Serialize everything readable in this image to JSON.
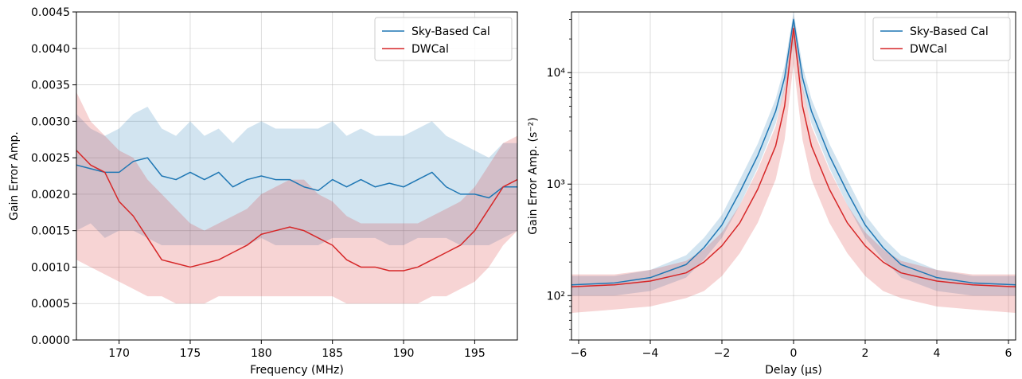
{
  "chart_data": [
    {
      "type": "line",
      "xlabel": "Frequency (MHz)",
      "ylabel": "Gain Error Amp.",
      "xlim": [
        167,
        198
      ],
      "ylim": [
        0,
        0.0045
      ],
      "x_ticks": [
        170,
        175,
        180,
        185,
        190,
        195
      ],
      "y_ticks": [
        0.0,
        0.0005,
        0.001,
        0.0015,
        0.002,
        0.0025,
        0.003,
        0.0035,
        0.004,
        0.0045
      ],
      "x_tick_labels": [
        "170",
        "175",
        "180",
        "185",
        "190",
        "195"
      ],
      "y_tick_labels": [
        "0.0000",
        "0.0005",
        "0.0010",
        "0.0015",
        "0.0020",
        "0.0025",
        "0.0030",
        "0.0035",
        "0.0040",
        "0.0045"
      ],
      "grid": true,
      "legend_position": "top-right",
      "series": [
        {
          "name": "Sky-Based Cal",
          "color": "#1f77b4",
          "x": [
            167,
            168,
            169,
            170,
            171,
            172,
            173,
            174,
            175,
            176,
            177,
            178,
            179,
            180,
            181,
            182,
            183,
            184,
            185,
            186,
            187,
            188,
            189,
            190,
            191,
            192,
            193,
            194,
            195,
            196,
            197,
            198
          ],
          "y": [
            0.0024,
            0.00235,
            0.0023,
            0.0023,
            0.00245,
            0.0025,
            0.00225,
            0.0022,
            0.0023,
            0.0022,
            0.0023,
            0.0021,
            0.0022,
            0.00225,
            0.0022,
            0.0022,
            0.0021,
            0.00205,
            0.0022,
            0.0021,
            0.0022,
            0.0021,
            0.00215,
            0.0021,
            0.0022,
            0.0023,
            0.0021,
            0.002,
            0.002,
            0.00195,
            0.0021,
            0.0021
          ],
          "lower": [
            0.0015,
            0.0016,
            0.0014,
            0.0015,
            0.0015,
            0.0014,
            0.0013,
            0.0013,
            0.0013,
            0.0013,
            0.0013,
            0.0013,
            0.0013,
            0.0014,
            0.0013,
            0.0013,
            0.0013,
            0.0013,
            0.0014,
            0.0014,
            0.0014,
            0.0014,
            0.0013,
            0.0013,
            0.0014,
            0.0014,
            0.0014,
            0.0013,
            0.0013,
            0.0013,
            0.0014,
            0.0015
          ],
          "upper": [
            0.0031,
            0.0029,
            0.0028,
            0.0029,
            0.0031,
            0.0032,
            0.0029,
            0.0028,
            0.003,
            0.0028,
            0.0029,
            0.0027,
            0.0029,
            0.003,
            0.0029,
            0.0029,
            0.0029,
            0.0029,
            0.003,
            0.0028,
            0.0029,
            0.0028,
            0.0028,
            0.0028,
            0.0029,
            0.003,
            0.0028,
            0.0027,
            0.0026,
            0.0025,
            0.0027,
            0.0027
          ]
        },
        {
          "name": "DWCal",
          "color": "#d62728",
          "x": [
            167,
            168,
            169,
            170,
            171,
            172,
            173,
            174,
            175,
            176,
            177,
            178,
            179,
            180,
            181,
            182,
            183,
            184,
            185,
            186,
            187,
            188,
            189,
            190,
            191,
            192,
            193,
            194,
            195,
            196,
            197,
            198
          ],
          "y": [
            0.0026,
            0.0024,
            0.0023,
            0.0019,
            0.0017,
            0.0014,
            0.0011,
            0.00105,
            0.001,
            0.00105,
            0.0011,
            0.0012,
            0.0013,
            0.00145,
            0.0015,
            0.00155,
            0.0015,
            0.0014,
            0.0013,
            0.0011,
            0.001,
            0.001,
            0.00095,
            0.00095,
            0.001,
            0.0011,
            0.0012,
            0.0013,
            0.0015,
            0.0018,
            0.0021,
            0.0022
          ],
          "lower": [
            0.0011,
            0.001,
            0.0009,
            0.0008,
            0.0007,
            0.0006,
            0.0006,
            0.0005,
            0.0005,
            0.0005,
            0.0006,
            0.0006,
            0.0006,
            0.0006,
            0.0006,
            0.0006,
            0.0006,
            0.0006,
            0.0006,
            0.0005,
            0.0005,
            0.0005,
            0.0005,
            0.0005,
            0.0005,
            0.0006,
            0.0006,
            0.0007,
            0.0008,
            0.001,
            0.0013,
            0.0015
          ],
          "upper": [
            0.0034,
            0.003,
            0.0028,
            0.0026,
            0.0025,
            0.0022,
            0.002,
            0.0018,
            0.0016,
            0.0015,
            0.0016,
            0.0017,
            0.0018,
            0.002,
            0.0021,
            0.0022,
            0.0022,
            0.002,
            0.0019,
            0.0017,
            0.0016,
            0.0016,
            0.0016,
            0.0016,
            0.0016,
            0.0017,
            0.0018,
            0.0019,
            0.0021,
            0.0024,
            0.0027,
            0.0028
          ]
        }
      ]
    },
    {
      "type": "line",
      "xlabel": "Delay (μs)",
      "ylabel": "Gain Error Amp. (s⁻²)",
      "xlim": [
        -6.2,
        6.2
      ],
      "ylim": [
        40,
        35000
      ],
      "yscale": "log",
      "x_ticks": [
        -6,
        -4,
        -2,
        0,
        2,
        4,
        6
      ],
      "y_ticks": [
        100,
        1000,
        10000
      ],
      "x_tick_labels": [
        "−6",
        "−4",
        "−2",
        "0",
        "2",
        "4",
        "6"
      ],
      "y_tick_labels": [
        "10²",
        "10³",
        "10⁴"
      ],
      "grid": true,
      "legend_position": "top-right",
      "series": [
        {
          "name": "Sky-Based Cal",
          "color": "#1f77b4",
          "x": [
            -6.2,
            -5,
            -4,
            -3,
            -2.5,
            -2,
            -1.5,
            -1,
            -0.5,
            -0.25,
            0,
            0.25,
            0.5,
            1,
            1.5,
            2,
            2.5,
            3,
            4,
            5,
            6.2
          ],
          "y": [
            125,
            130,
            145,
            190,
            270,
            430,
            850,
            1800,
            4500,
            9000,
            30000,
            9000,
            4500,
            1800,
            850,
            430,
            270,
            190,
            145,
            130,
            125
          ],
          "lower": [
            100,
            100,
            110,
            145,
            210,
            330,
            650,
            1400,
            3500,
            7000,
            18000,
            7000,
            3500,
            1400,
            650,
            330,
            210,
            145,
            110,
            100,
            100
          ],
          "upper": [
            150,
            150,
            170,
            230,
            330,
            530,
            1100,
            2300,
            5800,
            11500,
            35000,
            11500,
            5800,
            2300,
            1100,
            530,
            330,
            230,
            170,
            150,
            150
          ]
        },
        {
          "name": "DWCal",
          "color": "#d62728",
          "x": [
            -6.2,
            -5,
            -4,
            -3,
            -2.5,
            -2,
            -1.5,
            -1,
            -0.5,
            -0.25,
            0,
            0.25,
            0.5,
            1,
            1.5,
            2,
            2.5,
            3,
            4,
            5,
            6.2
          ],
          "y": [
            120,
            125,
            135,
            160,
            200,
            280,
            450,
            900,
            2200,
            5000,
            25000,
            5000,
            2200,
            900,
            450,
            280,
            200,
            160,
            135,
            125,
            120
          ],
          "lower": [
            70,
            75,
            80,
            95,
            110,
            150,
            240,
            450,
            1100,
            2500,
            12000,
            2500,
            1100,
            450,
            240,
            150,
            110,
            95,
            80,
            75,
            70
          ],
          "upper": [
            155,
            155,
            170,
            205,
            260,
            370,
            650,
            1350,
            3300,
            7500,
            32000,
            7500,
            3300,
            1350,
            650,
            370,
            260,
            205,
            170,
            155,
            155
          ]
        }
      ]
    }
  ]
}
